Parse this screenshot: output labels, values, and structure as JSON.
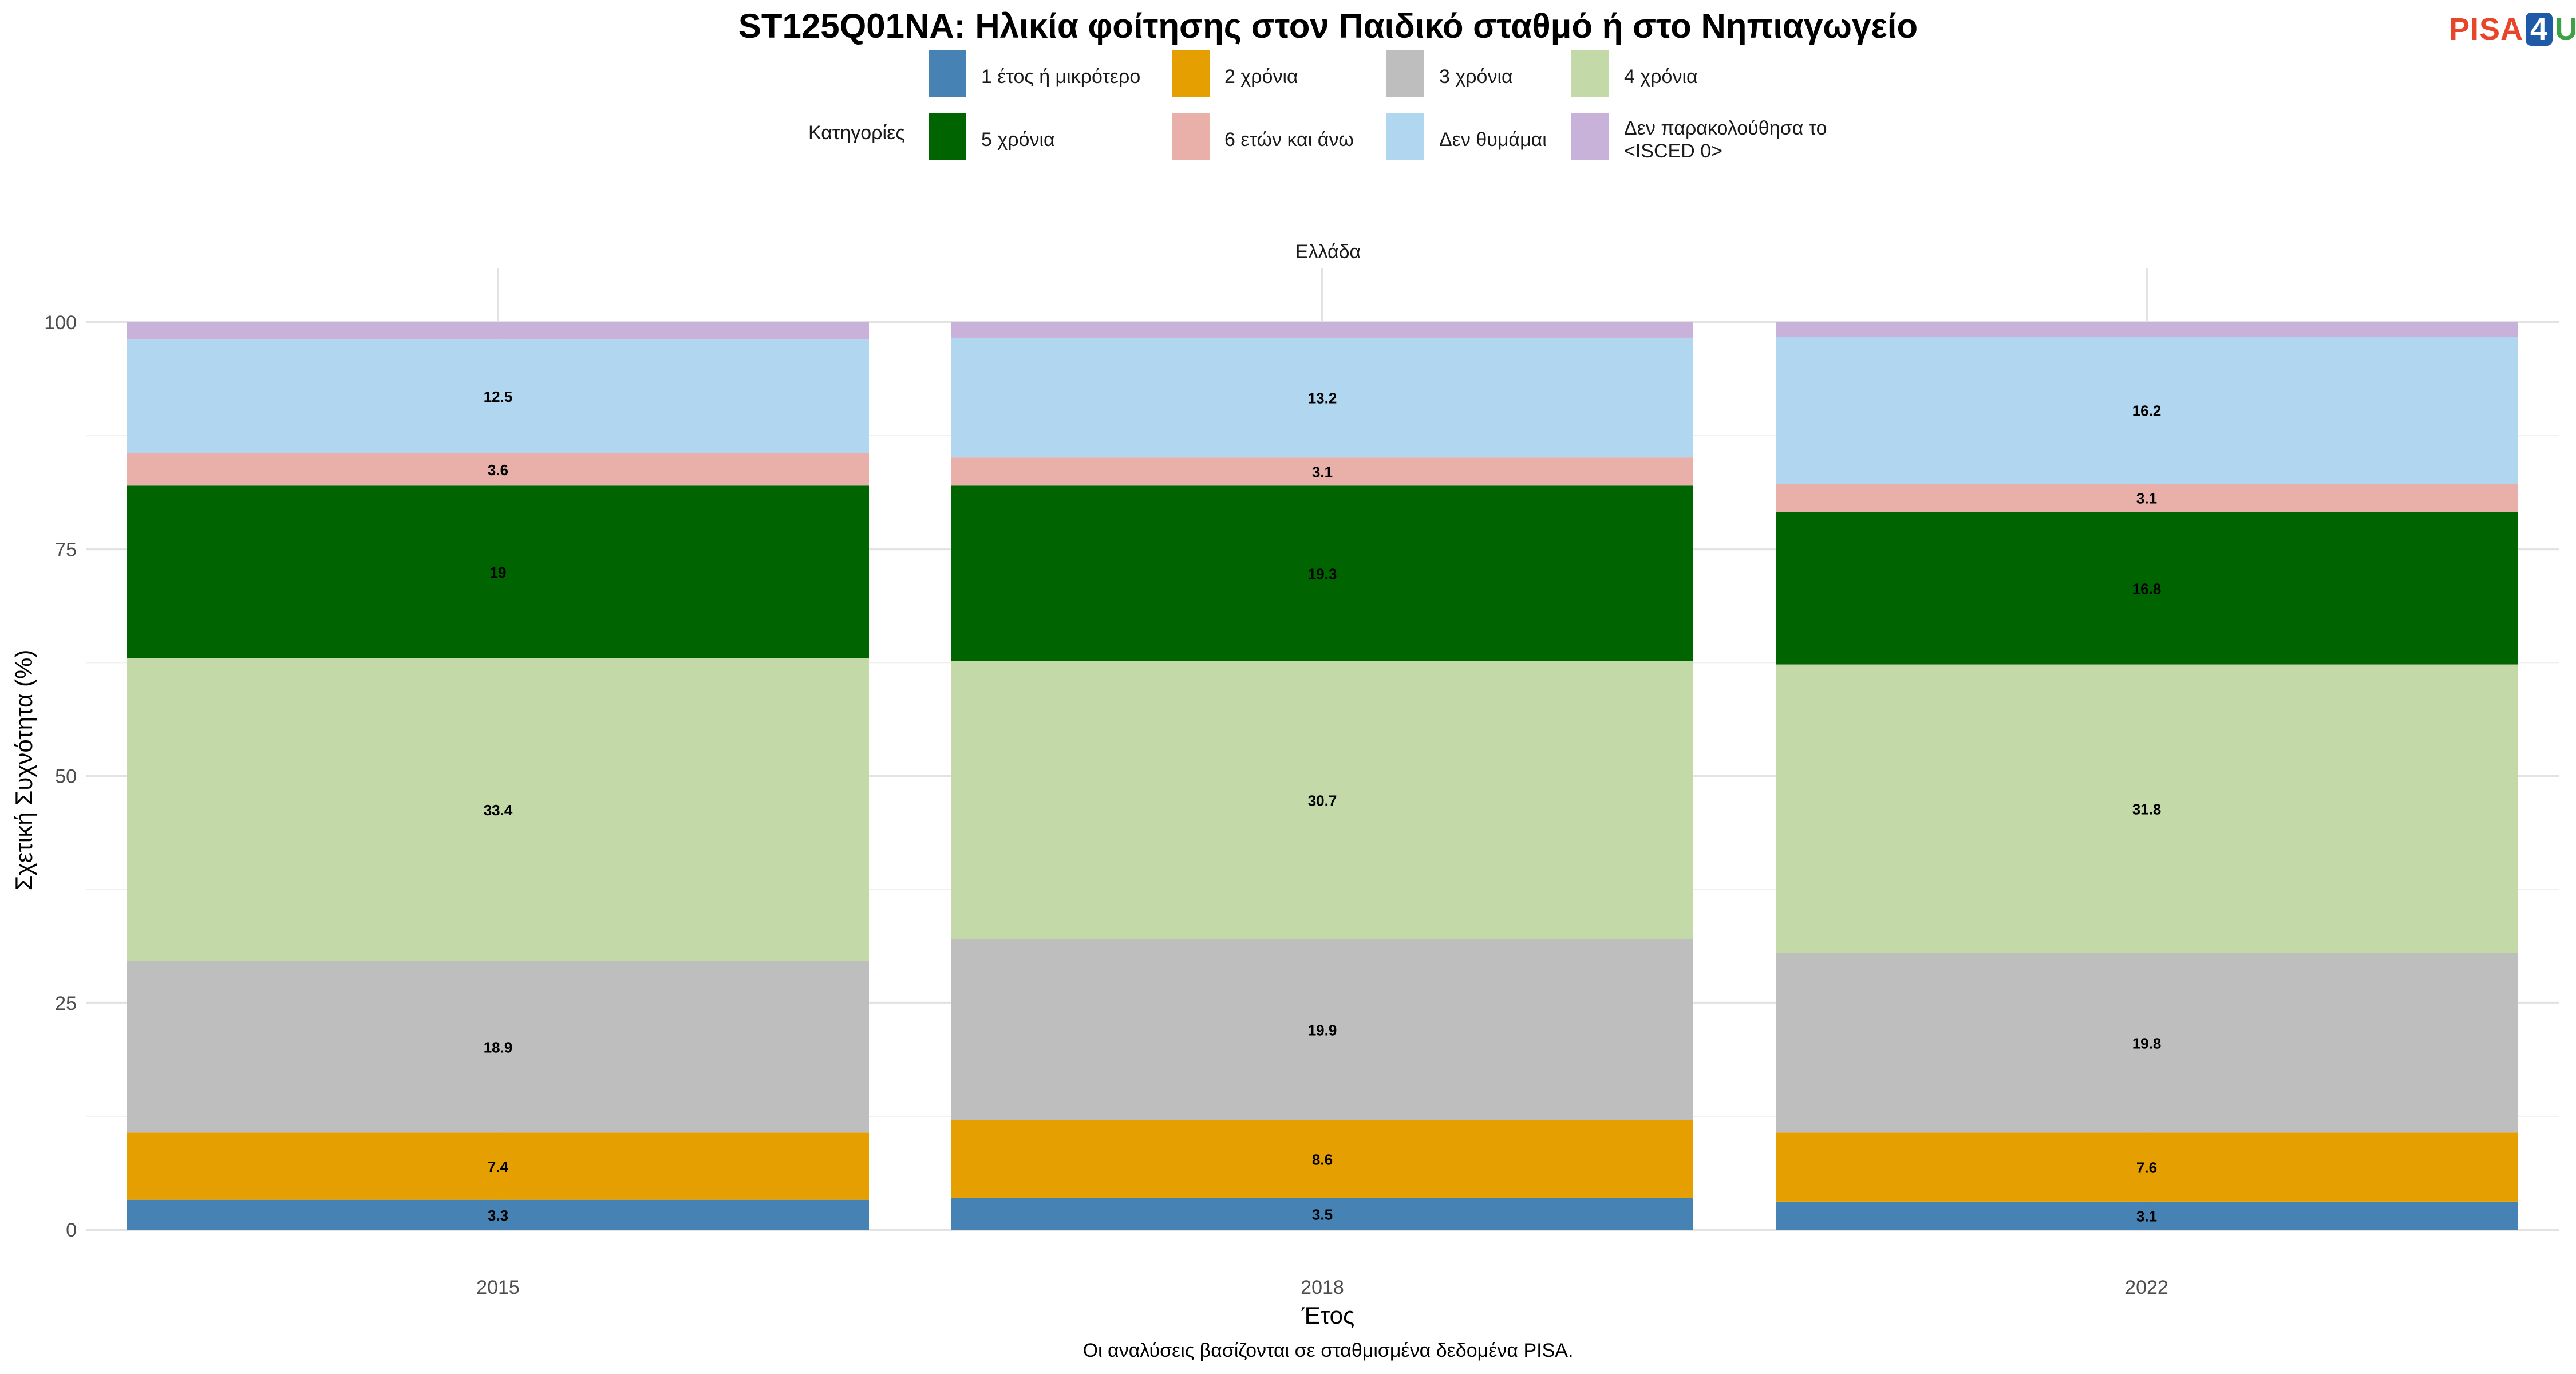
{
  "logo": {
    "part1": "PISA",
    "part2": "4",
    "part3": "U"
  },
  "chart_data": {
    "type": "bar",
    "stacked": true,
    "title": "ST125Q01NA: Ηλικία φοίτησης στον Παιδικό σταθμό ή στο Νηπιαγωγείο",
    "facet_label": "Ελλάδα",
    "xlabel": "Έτος",
    "ylabel": "Σχετική Συχνότητα (%)",
    "caption": "Οι αναλύσεις βασίζονται σε σταθμισμένα δεδομένα PISA.",
    "legend_title": "Κατηγορίες",
    "legend_position": "top",
    "ylim": [
      0,
      100
    ],
    "yticks": [
      0,
      25,
      50,
      75,
      100
    ],
    "grid": true,
    "categories": [
      "2015",
      "2018",
      "2022"
    ],
    "series": [
      {
        "name": "1 έτος ή μικρότερο",
        "color": "#4682b4",
        "values": [
          3.3,
          3.5,
          3.1
        ]
      },
      {
        "name": "2 χρόνια",
        "color": "#e69f00",
        "values": [
          7.4,
          8.6,
          7.6
        ]
      },
      {
        "name": "3 χρόνια",
        "color": "#bebebe",
        "values": [
          18.9,
          19.9,
          19.8
        ]
      },
      {
        "name": "4 χρόνια",
        "color": "#c3d9a7",
        "values": [
          33.4,
          30.7,
          31.8
        ]
      },
      {
        "name": "5 χρόνια",
        "color": "#006400",
        "values": [
          19,
          19.3,
          16.8
        ]
      },
      {
        "name": "6 ετών και άνω",
        "color": "#e8b0a8",
        "values": [
          3.6,
          3.1,
          3.1
        ]
      },
      {
        "name": "Δεν θυμάμαι",
        "color": "#b0d6f0",
        "values": [
          12.5,
          13.2,
          16.2
        ]
      },
      {
        "name": "Δεν παρακολούθησα το <ISCED 0>",
        "color": "#c9b2d9",
        "values": [
          1.9,
          1.7,
          1.6
        ]
      }
    ],
    "data_labels": [
      [
        "3.3",
        "7.4",
        "18.9",
        "33.4",
        "19",
        "3.6",
        "12.5",
        ""
      ],
      [
        "3.5",
        "8.6",
        "19.9",
        "30.7",
        "19.3",
        "3.1",
        "13.2",
        ""
      ],
      [
        "3.1",
        "7.6",
        "19.8",
        "31.8",
        "16.8",
        "3.1",
        "16.2",
        ""
      ]
    ]
  }
}
